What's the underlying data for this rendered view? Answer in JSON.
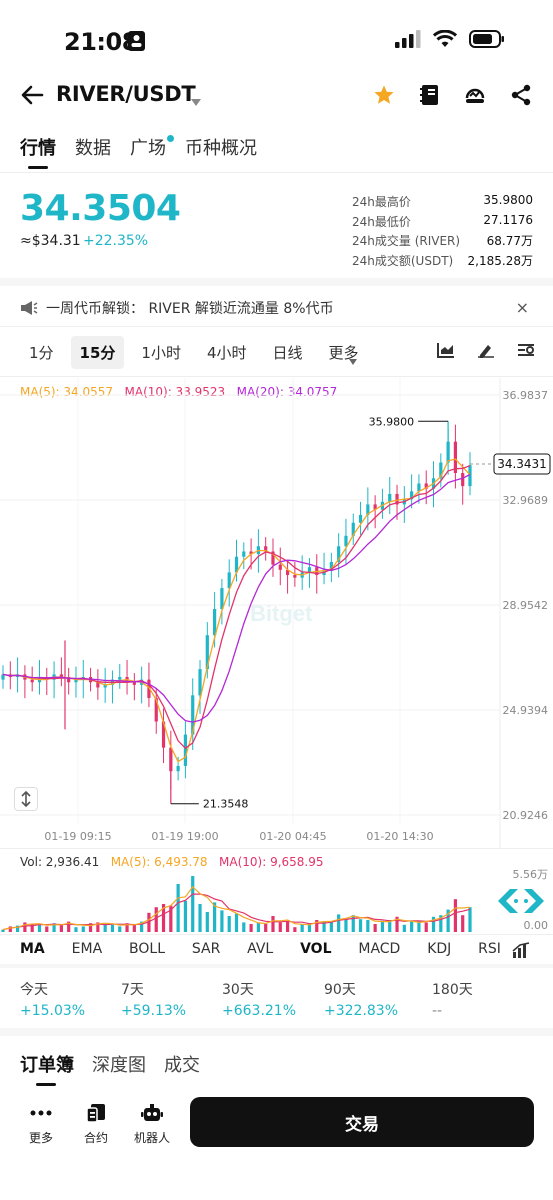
{
  "status": {
    "time": "21:08"
  },
  "header": {
    "pair": "RIVER/USDT"
  },
  "tabs": [
    "行情",
    "数据",
    "广场",
    "币种概况"
  ],
  "price": {
    "last": "34.3504",
    "usd": "≈$34.31",
    "change": "+22.35%"
  },
  "stats": [
    {
      "label": "24h最高价",
      "value": "35.9800"
    },
    {
      "label": "24h最低价",
      "value": "27.1176"
    },
    {
      "label": "24h成交量 (RIVER)",
      "value": "68.77万"
    },
    {
      "label": "24h成交额(USDT)",
      "value": "2,185.28万"
    }
  ],
  "notice": {
    "text": "一周代币解锁：  RIVER 解锁近流通量 8%代币",
    "close": "×"
  },
  "intervals": [
    "1分",
    "15分",
    "1小时",
    "4小时",
    "日线",
    "更多"
  ],
  "ma": {
    "ma5": "MA(5): 34.0557",
    "ma10": "MA(10): 33.9523",
    "ma20": "MA(20): 34.0757"
  },
  "price_axis": [
    "36.9837",
    "32.9689",
    "28.9542",
    "24.9394",
    "20.9246"
  ],
  "current_price_tag": "34.3431",
  "high_label": "35.9800",
  "low_label": "21.3548",
  "watermark": "Bitget",
  "time_axis": [
    "01-19 09:15",
    "01-19 19:00",
    "01-20 04:45",
    "01-20 14:30"
  ],
  "vol": {
    "vol": "Vol: 2,936.41",
    "ma5": "MA(5): 6,493.78",
    "ma10": "MA(10): 9,658.95",
    "max": "5.56万",
    "min": "0.00"
  },
  "indicators": [
    "MA",
    "EMA",
    "BOLL",
    "SAR",
    "AVL",
    "VOL",
    "MACD",
    "KDJ",
    "RSI"
  ],
  "performance": [
    {
      "label": "今天",
      "value": "+15.03%"
    },
    {
      "label": "7天",
      "value": "+59.13%"
    },
    {
      "label": "30天",
      "value": "+663.21%"
    },
    {
      "label": "90天",
      "value": "+322.83%"
    },
    {
      "label": "180天",
      "value": "--"
    }
  ],
  "orderbook_tabs": [
    "订单簿",
    "深度图",
    "成交"
  ],
  "bottom": {
    "more": "更多",
    "contract": "合约",
    "bot": "机器人",
    "trade": "交易"
  },
  "colors": {
    "up": "#1fb6c8",
    "down": "#e2336b",
    "ma5": "#f5a623",
    "ma10": "#e2336b",
    "ma20": "#b427d6"
  },
  "chart_data": {
    "type": "candlestick",
    "y_axis_ticks": [
      36.9837,
      32.9689,
      28.9542,
      24.9394,
      20.9246
    ],
    "ylim": [
      20.9246,
      36.9837
    ],
    "x_ticks": [
      "01-19 09:15",
      "01-19 19:00",
      "01-20 04:45",
      "01-20 14:30"
    ],
    "high": 35.98,
    "low": 21.3548,
    "close_series": [
      26.3,
      26.2,
      26.3,
      26.1,
      26.0,
      26.2,
      26.1,
      26.3,
      26.2,
      26.0,
      26.1,
      26.2,
      26.0,
      25.8,
      25.9,
      26.1,
      26.2,
      26.0,
      25.9,
      26.1,
      25.4,
      24.5,
      23.5,
      22.6,
      22.8,
      24.0,
      25.5,
      26.5,
      27.8,
      28.8,
      29.6,
      30.2,
      30.8,
      31.0,
      30.9,
      31.2,
      31.0,
      30.5,
      30.3,
      30.1,
      30.0,
      30.2,
      30.4,
      30.1,
      30.3,
      30.6,
      31.2,
      31.6,
      32.1,
      32.4,
      32.8,
      32.6,
      32.9,
      33.2,
      32.8,
      33.0,
      33.3,
      33.6,
      33.4,
      33.8,
      34.4,
      35.2,
      34.0,
      33.5,
      34.3
    ]
  }
}
